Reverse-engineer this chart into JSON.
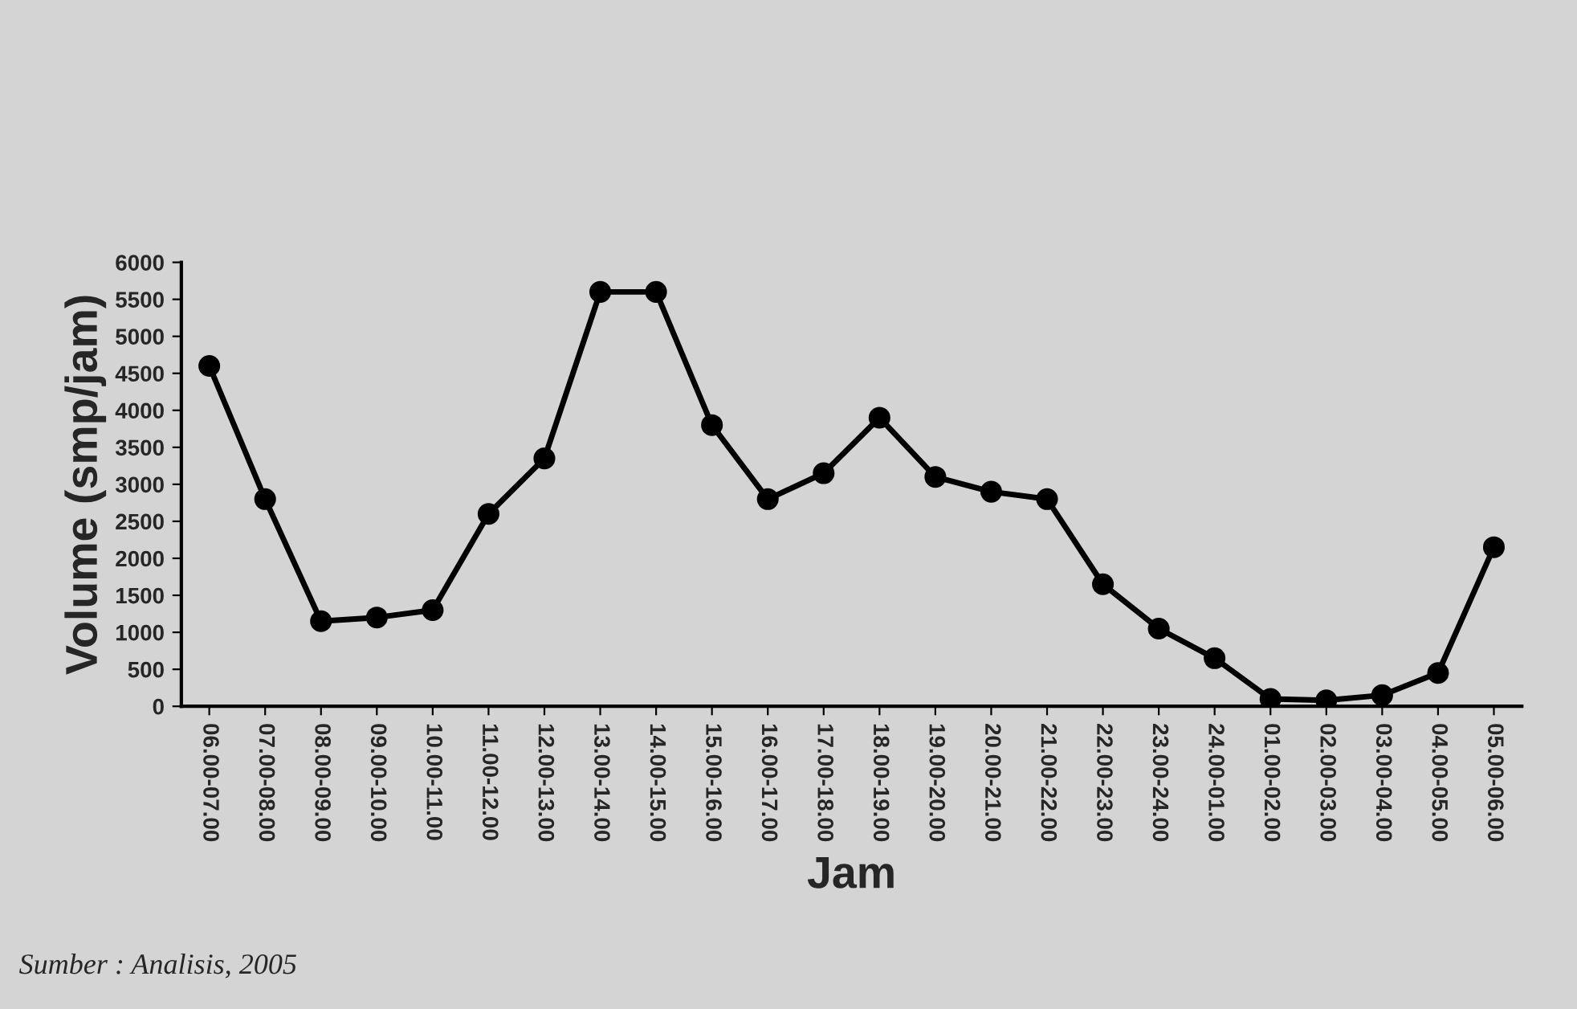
{
  "chart_data": {
    "type": "line",
    "xlabel": "Jam",
    "ylabel": "Volume (smp/jam)",
    "categories": [
      "06.00-07.00",
      "07.00-08.00",
      "08.00-09.00",
      "09.00-10.00",
      "10.00-11.00",
      "11.00-12.00",
      "12.00-13.00",
      "13.00-14.00",
      "14.00-15.00",
      "15.00-16.00",
      "16.00-17.00",
      "17.00-18.00",
      "18.00-19.00",
      "19.00-20.00",
      "20.00-21.00",
      "21.00-22.00",
      "22.00-23.00",
      "23.00-24.00",
      "24.00-01.00",
      "01.00-02.00",
      "02.00-03.00",
      "03.00-04.00",
      "04.00-05.00",
      "05.00-06.00"
    ],
    "series": [
      {
        "color": "#000000",
        "values": [
          4600,
          2800,
          1150,
          1200,
          1300,
          2600,
          3350,
          5600,
          5600,
          3800,
          2800,
          3150,
          3900,
          3100,
          2900,
          2800,
          1650,
          1050,
          650,
          100,
          80,
          150,
          450,
          2150
        ]
      }
    ],
    "ylim": [
      0,
      6000
    ],
    "yticks": [
      0,
      500,
      1000,
      1500,
      2000,
      2500,
      3000,
      3500,
      4000,
      4500,
      5000,
      5500,
      6000
    ],
    "grid": false,
    "legend": false,
    "marker": "circle",
    "line_style": "solid",
    "annotations": [
      "Sumber : Analisis, 2005"
    ]
  }
}
